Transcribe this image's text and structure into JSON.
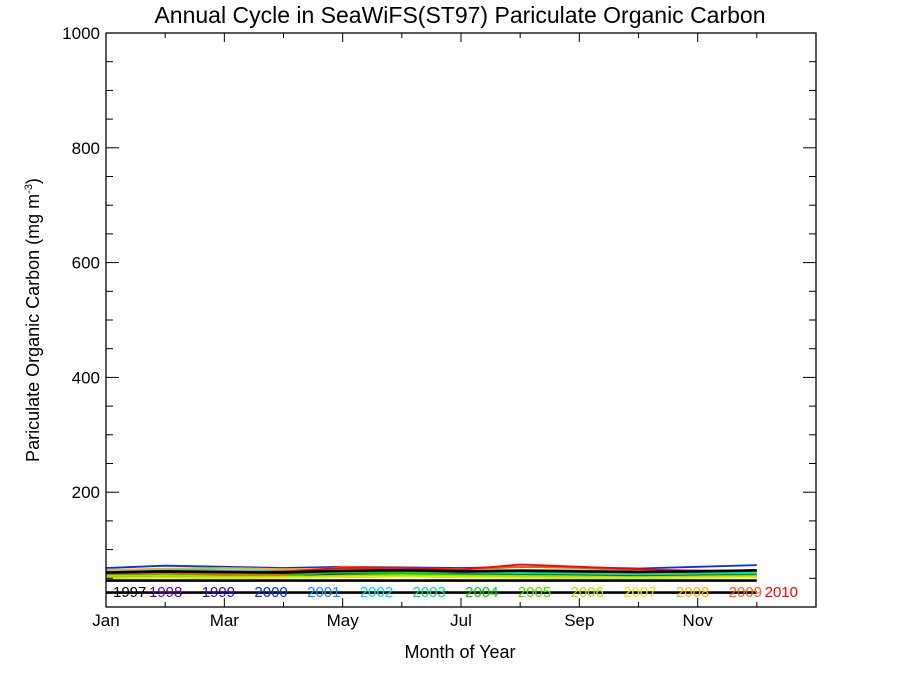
{
  "chart_data": {
    "type": "line",
    "title": "Annual Cycle in SeaWiFS(ST97) Pariculate Organic Carbon",
    "xlabel": "Month of Year",
    "ylabel": "Pariculate Organic Carbon (mg m",
    "ylabel_sup": "-3",
    "ylabel_close": ")",
    "xlim": [
      1,
      13
    ],
    "ylim": [
      0,
      1000
    ],
    "xticks": [
      {
        "value": 1,
        "label": "Jan"
      },
      {
        "value": 3,
        "label": "Mar"
      },
      {
        "value": 5,
        "label": "May"
      },
      {
        "value": 7,
        "label": "Jul"
      },
      {
        "value": 9,
        "label": "Sep"
      },
      {
        "value": 11,
        "label": "Nov"
      }
    ],
    "yticks": [
      {
        "value": 200,
        "label": "200"
      },
      {
        "value": 400,
        "label": "400"
      },
      {
        "value": 600,
        "label": "600"
      },
      {
        "value": 800,
        "label": "800"
      },
      {
        "value": 1000,
        "label": "1000"
      }
    ],
    "x": [
      1,
      2,
      3,
      4,
      5,
      6,
      7,
      8,
      9,
      10,
      11,
      12
    ],
    "series": [
      {
        "name": "1997",
        "color": "#000000",
        "values": [
          null,
          null,
          null,
          null,
          null,
          null,
          null,
          null,
          55,
          54,
          53,
          54
        ]
      },
      {
        "name": "1998",
        "color": "#5a00a0",
        "values": [
          58,
          60,
          58,
          57,
          60,
          62,
          60,
          58,
          56,
          55,
          55,
          57
        ]
      },
      {
        "name": "1999",
        "color": "#3000c8",
        "values": [
          56,
          57,
          55,
          55,
          57,
          58,
          57,
          56,
          55,
          54,
          54,
          55
        ]
      },
      {
        "name": "2000",
        "color": "#0030ff",
        "values": [
          68,
          72,
          70,
          68,
          70,
          69,
          68,
          70,
          69,
          67,
          70,
          73
        ]
      },
      {
        "name": "2001",
        "color": "#0090ff",
        "values": [
          62,
          63,
          61,
          60,
          61,
          62,
          63,
          62,
          61,
          60,
          61,
          62
        ]
      },
      {
        "name": "2002",
        "color": "#00e0e0",
        "values": [
          65,
          66,
          64,
          63,
          64,
          65,
          66,
          65,
          64,
          63,
          63,
          64
        ]
      },
      {
        "name": "2003",
        "color": "#00e880",
        "values": [
          60,
          61,
          59,
          58,
          60,
          61,
          60,
          59,
          58,
          57,
          58,
          59
        ]
      },
      {
        "name": "2004",
        "color": "#00d000",
        "values": [
          55,
          56,
          54,
          55,
          60,
          59,
          56,
          55,
          54,
          53,
          54,
          55
        ]
      },
      {
        "name": "2005",
        "color": "#50e000",
        "values": [
          52,
          53,
          52,
          52,
          55,
          56,
          54,
          53,
          52,
          51,
          52,
          53
        ]
      },
      {
        "name": "2006",
        "color": "#a8e000",
        "values": [
          54,
          55,
          53,
          53,
          54,
          55,
          54,
          54,
          53,
          52,
          53,
          54
        ]
      },
      {
        "name": "2007",
        "color": "#e8e800",
        "values": [
          50,
          51,
          50,
          51,
          52,
          53,
          52,
          51,
          50,
          50,
          51,
          52
        ]
      },
      {
        "name": "2008",
        "color": "#ffb000",
        "values": [
          64,
          67,
          68,
          66,
          67,
          66,
          65,
          64,
          63,
          62,
          63,
          64
        ]
      },
      {
        "name": "2009",
        "color": "#ff5a00",
        "values": [
          58,
          59,
          57,
          57,
          70,
          68,
          66,
          70,
          68,
          65,
          64,
          63
        ]
      },
      {
        "name": "2010",
        "color": "#ff0000",
        "values": [
          60,
          61,
          60,
          62,
          68,
          68,
          65,
          74,
          70,
          66,
          62,
          null
        ]
      }
    ],
    "reference_lines": [
      {
        "color": "#000000",
        "values": [
          46,
          46,
          46,
          46,
          46,
          46,
          46,
          46,
          46,
          46,
          46,
          46
        ]
      },
      {
        "color": "#000000",
        "values": [
          25,
          25,
          25,
          25,
          25,
          25,
          25,
          25,
          25,
          25,
          25,
          25
        ]
      },
      {
        "color": "#000000",
        "values": [
          60,
          62,
          61,
          60,
          63,
          64,
          62,
          63,
          62,
          61,
          62,
          64
        ]
      }
    ]
  }
}
